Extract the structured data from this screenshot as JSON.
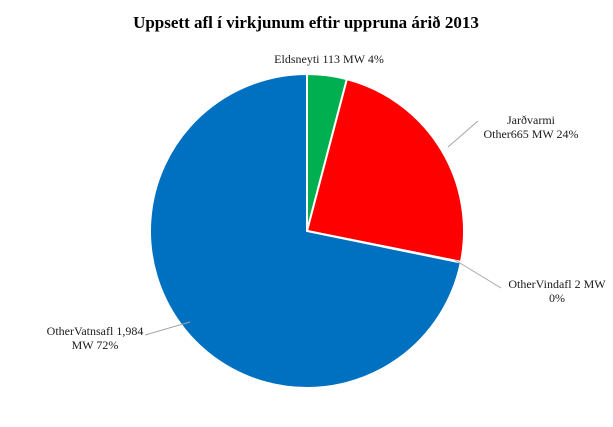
{
  "chart_data": {
    "type": "pie",
    "title": "Uppsett afl í virkjunum eftir uppruna árið 2013",
    "slices": [
      {
        "name": "Eldsneyti",
        "value": 113,
        "value_text": "113 MW",
        "percent": "4%",
        "color": "#00b050",
        "label_lines": [
          "Eldsneyti 113 MW  4%"
        ]
      },
      {
        "name": "Jarðvarmi",
        "value": 665,
        "value_text": "665 MW",
        "percent": "24%",
        "color": "#ff0000",
        "label_lines": [
          "Jarðvarmi",
          "Other665 MW 24%"
        ]
      },
      {
        "name": "Vindafl",
        "value": 2,
        "value_text": "2 MW",
        "percent": "0%",
        "color": "#7f7f7f",
        "label_lines": [
          "OtherVindafl  2 MW",
          "0%"
        ]
      },
      {
        "name": "Vatnsafl",
        "value": 1984,
        "value_text": "1,984 MW",
        "percent": "72%",
        "color": "#0070c0",
        "label_lines": [
          "OtherVatnsafl 1,984",
          "MW 72%"
        ]
      }
    ]
  }
}
